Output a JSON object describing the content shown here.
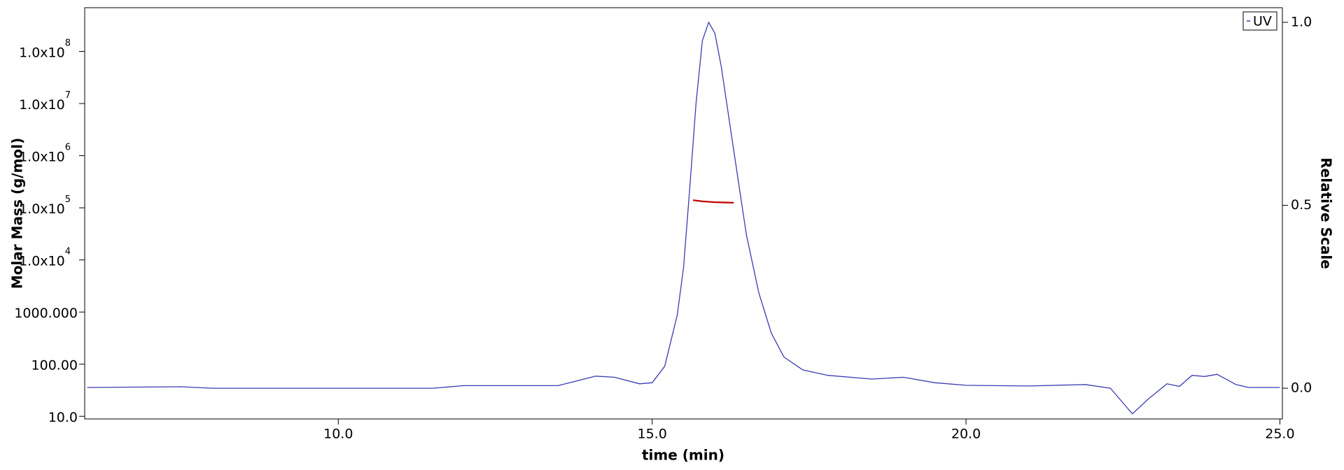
{
  "chart_data": {
    "type": "line",
    "x_label": "time (min)",
    "y_label": "Molar Mass (g/mol)",
    "y2_label": "Relative Scale",
    "xlim": [
      5.96,
      25.04
    ],
    "xticks": [
      {
        "value": 10,
        "label": "10.0"
      },
      {
        "value": 15,
        "label": "15.0"
      },
      {
        "value": 20,
        "label": "20.0"
      },
      {
        "value": 25,
        "label": "25.0"
      }
    ],
    "ylim": [
      8.9,
      690000000
    ],
    "log_y": true,
    "yticks": [
      {
        "value": 10,
        "label": "10.0"
      },
      {
        "value": 100,
        "label": "100.00"
      },
      {
        "value": 1000,
        "label": "1000.000"
      },
      {
        "value": 10000,
        "label": "1.0x10",
        "sup": "4"
      },
      {
        "value": 100000,
        "label": "1.0x10",
        "sup": "5"
      },
      {
        "value": 1000000,
        "label": "1.0x10",
        "sup": "6"
      },
      {
        "value": 10000000,
        "label": "1.0x10",
        "sup": "7"
      },
      {
        "value": 100000000,
        "label": "1.0x10",
        "sup": "8"
      }
    ],
    "y2lim": [
      -0.084,
      1.04
    ],
    "y2ticks": [
      {
        "value": 0,
        "label": "0.0"
      },
      {
        "value": 0.5,
        "label": "0.5"
      },
      {
        "value": 1,
        "label": "1.0"
      }
    ],
    "legend": "top-right",
    "series": [
      {
        "name": "UV",
        "color": "#3b3bb3",
        "axis": "y2",
        "legend": true,
        "x": [
          6.0,
          7.5,
          8.0,
          11.5,
          12.0,
          13.5,
          13.8,
          14.1,
          14.4,
          14.8,
          15.0,
          15.2,
          15.4,
          15.5,
          15.6,
          15.7,
          15.8,
          15.9,
          16.0,
          16.1,
          16.3,
          16.5,
          16.7,
          16.9,
          17.1,
          17.4,
          17.8,
          18.5,
          19.0,
          19.5,
          20.0,
          21.0,
          21.9,
          22.3,
          22.5,
          22.65,
          22.9,
          23.2,
          23.4,
          23.6,
          23.8,
          24.0,
          24.3,
          24.5,
          25.0
        ],
        "values": [
          0.002,
          0.004,
          0.0,
          0.0,
          0.007,
          0.007,
          0.02,
          0.033,
          0.03,
          0.012,
          0.015,
          0.06,
          0.2,
          0.33,
          0.55,
          0.78,
          0.95,
          1.0,
          0.97,
          0.88,
          0.65,
          0.42,
          0.26,
          0.15,
          0.085,
          0.05,
          0.035,
          0.025,
          0.03,
          0.015,
          0.008,
          0.006,
          0.01,
          0.0,
          -0.04,
          -0.07,
          -0.03,
          0.012,
          0.005,
          0.035,
          0.032,
          0.038,
          0.01,
          0.002,
          0.002
        ]
      },
      {
        "color": "#c00000",
        "axis": "y",
        "x": [
          15.65,
          15.8,
          16.0,
          16.3
        ],
        "values": [
          140000,
          133000,
          128000,
          125000
        ]
      }
    ]
  }
}
